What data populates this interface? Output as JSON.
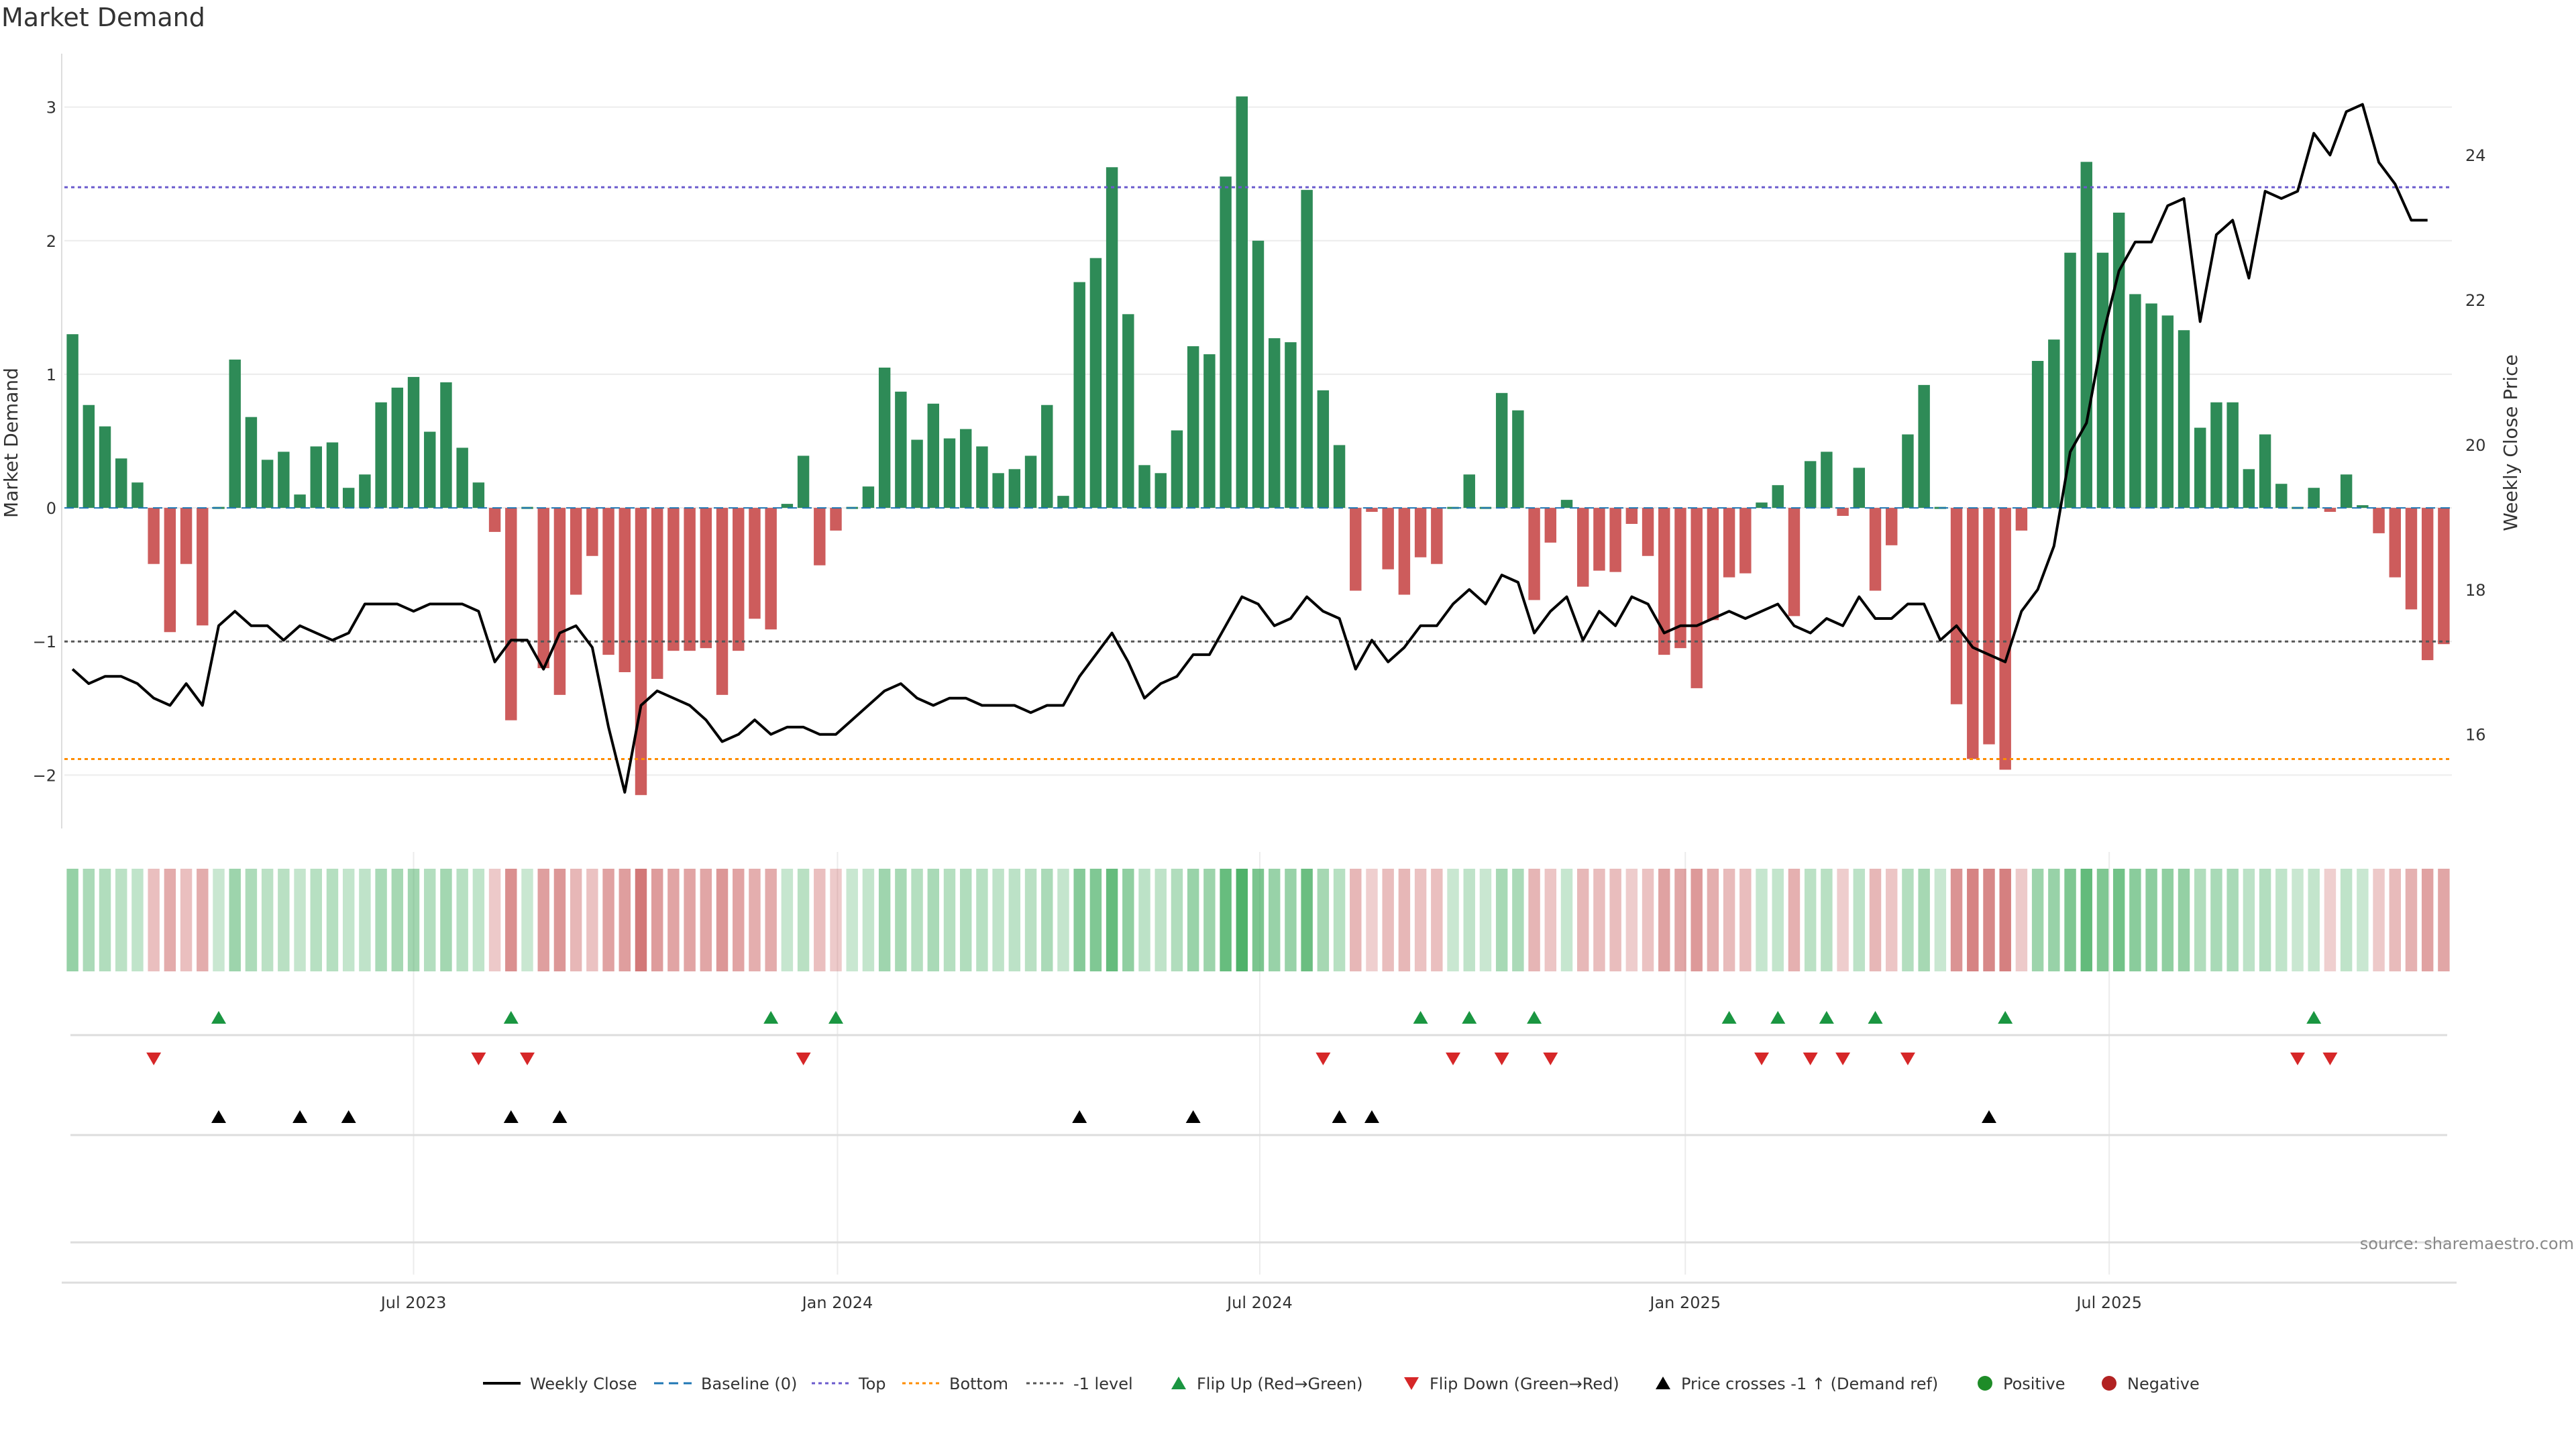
{
  "title": "Market Demand",
  "source": "source: sharemaestro.com",
  "chart_data": {
    "type": "bar",
    "title": "Market Demand",
    "ylabel": "Market Demand",
    "y2label": "Weekly Close Price",
    "ylim": [
      -2.4,
      3.4
    ],
    "y_ticks": [
      3,
      2,
      1,
      0,
      -1,
      -2
    ],
    "y2lim": [
      14.7,
      25.4
    ],
    "y2_ticks": [
      24,
      22,
      20,
      18,
      16
    ],
    "x_ticks": [
      {
        "label": "Jul 2023",
        "week": 21.5
      },
      {
        "label": "Jan 2024",
        "week": 47.6
      },
      {
        "label": "Jul 2024",
        "week": 73.6
      },
      {
        "label": "Jan 2025",
        "week": 99.8
      },
      {
        "label": "Jul 2025",
        "week": 125.9
      }
    ],
    "reference_lines": {
      "baseline": 0,
      "top": 2.4,
      "bottom": -1.88,
      "minus_one": -1
    },
    "series": [
      {
        "name": "Market Demand",
        "values": [
          1.3,
          0.77,
          0.61,
          0.37,
          0.19,
          -0.42,
          -0.93,
          -0.42,
          -0.88,
          0.0,
          1.11,
          0.68,
          0.36,
          0.42,
          0.1,
          0.46,
          0.49,
          0.15,
          0.25,
          0.79,
          0.9,
          0.98,
          0.57,
          0.94,
          0.45,
          0.19,
          -0.18,
          -1.59,
          0.01,
          -1.2,
          -1.4,
          -0.65,
          -0.36,
          -1.1,
          -1.23,
          -2.15,
          -1.28,
          -1.07,
          -1.07,
          -1.05,
          -1.4,
          -1.07,
          -0.83,
          -0.91,
          0.03,
          0.39,
          -0.43,
          -0.17,
          0.0,
          0.16,
          1.05,
          0.87,
          0.51,
          0.78,
          0.52,
          0.59,
          0.46,
          0.26,
          0.29,
          0.39,
          0.77,
          0.09,
          1.69,
          1.87,
          2.55,
          1.45,
          0.32,
          0.26,
          0.58,
          1.21,
          1.15,
          2.48,
          3.08,
          2.0,
          1.27,
          1.24,
          2.38,
          0.88,
          0.47,
          -0.62,
          -0.03,
          -0.46,
          -0.65,
          -0.37,
          -0.42,
          0.01,
          0.25,
          0.0,
          0.86,
          0.73,
          -0.69,
          -0.26,
          0.06,
          -0.59,
          -0.47,
          -0.48,
          -0.12,
          -0.36,
          -1.1,
          -1.05,
          -1.35,
          -0.84,
          -0.52,
          -0.49,
          0.04,
          0.17,
          -0.81,
          0.35,
          0.42,
          -0.06,
          0.3,
          -0.62,
          -0.28,
          0.55,
          0.92,
          0.0,
          -1.47,
          -1.88,
          -1.77,
          -1.96,
          -0.17,
          1.1,
          1.26,
          1.91,
          2.59,
          1.91,
          2.21,
          1.6,
          1.53,
          1.44,
          1.33,
          0.6,
          0.79,
          0.79,
          0.29,
          0.55,
          0.18,
          0.01,
          0.15,
          -0.03,
          0.25,
          0.02,
          -0.19,
          -0.52,
          -0.76,
          -1.14,
          -1.02
        ]
      },
      {
        "name": "Weekly Close",
        "values": [
          16.9,
          16.7,
          16.8,
          16.8,
          16.7,
          16.5,
          16.4,
          16.7,
          16.4,
          17.5,
          17.7,
          17.5,
          17.5,
          17.3,
          17.5,
          17.4,
          17.3,
          17.4,
          17.8,
          17.8,
          17.8,
          17.7,
          17.8,
          17.8,
          17.8,
          17.7,
          17.0,
          17.3,
          17.3,
          16.9,
          17.4,
          17.5,
          17.2,
          16.1,
          15.2,
          16.4,
          16.6,
          16.5,
          16.4,
          16.2,
          15.9,
          16.0,
          16.2,
          16.0,
          16.1,
          16.1,
          16.0,
          16.0,
          16.2,
          16.4,
          16.6,
          16.7,
          16.5,
          16.4,
          16.5,
          16.5,
          16.4,
          16.4,
          16.4,
          16.3,
          16.4,
          16.4,
          16.8,
          17.1,
          17.4,
          17.0,
          16.5,
          16.7,
          16.8,
          17.1,
          17.1,
          17.5,
          17.9,
          17.8,
          17.5,
          17.6,
          17.9,
          17.7,
          17.6,
          16.9,
          17.3,
          17.0,
          17.2,
          17.5,
          17.5,
          17.8,
          18.0,
          17.8,
          18.2,
          18.1,
          17.4,
          17.7,
          17.9,
          17.3,
          17.7,
          17.5,
          17.9,
          17.8,
          17.4,
          17.5,
          17.5,
          17.6,
          17.7,
          17.6,
          17.7,
          17.8,
          17.5,
          17.4,
          17.6,
          17.5,
          17.9,
          17.6,
          17.6,
          17.8,
          17.8,
          17.3,
          17.5,
          17.2,
          17.1,
          17.0,
          17.7,
          18.0,
          18.6,
          19.9,
          20.3,
          21.5,
          22.4,
          22.8,
          22.8,
          23.3,
          23.4,
          21.7,
          22.9,
          23.1,
          22.3,
          23.5,
          23.4,
          23.5,
          24.3,
          24.0,
          24.6,
          24.7,
          23.9,
          23.6,
          23.1,
          23.1
        ]
      }
    ],
    "heatmap_strip": "weekly demand intensity (green positive, red negative)",
    "markers": {
      "flip_up_weeks": [
        9,
        27,
        43,
        47,
        83,
        86,
        90,
        102,
        105,
        108,
        111,
        119,
        138
      ],
      "flip_down_weeks": [
        5,
        25,
        28,
        45,
        77,
        85,
        88,
        91,
        104,
        107,
        109,
        113,
        137,
        139
      ],
      "price_cross_weeks": [
        9,
        14,
        17,
        27,
        30,
        62,
        69,
        78,
        80,
        118
      ]
    },
    "legend": [
      {
        "label": "Weekly Close",
        "style": "line",
        "color": "#000000"
      },
      {
        "label": "Baseline (0)",
        "style": "dashed",
        "color": "#1f77b4"
      },
      {
        "label": "Top",
        "style": "dotted",
        "color": "#6a5acd"
      },
      {
        "label": "Bottom",
        "style": "dotted",
        "color": "#ff8c00"
      },
      {
        "label": "-1 level",
        "style": "dotted",
        "color": "#555555"
      },
      {
        "label": "Flip Up (Red→Green)",
        "style": "triangle-up",
        "color": "#1a9641"
      },
      {
        "label": "Flip Down (Green→Red)",
        "style": "triangle-down",
        "color": "#d62728"
      },
      {
        "label": "Price crosses -1 ↑ (Demand ref)",
        "style": "triangle-up",
        "color": "#000000"
      },
      {
        "label": "Positive",
        "style": "circle",
        "color": "#1e8c28"
      },
      {
        "label": "Negative",
        "style": "circle",
        "color": "#b22222"
      }
    ],
    "colors": {
      "positive_bar": "#2e8b57",
      "negative_bar": "#cd5c5c",
      "price_line": "#000000"
    }
  }
}
